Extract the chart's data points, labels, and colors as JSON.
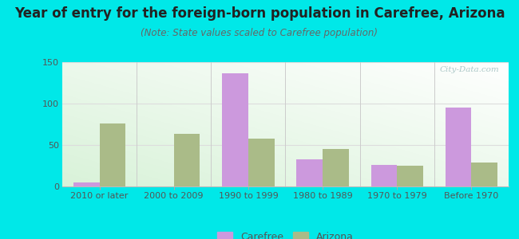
{
  "title": "Year of entry for the foreign-born population in Carefree, Arizona",
  "subtitle": "(Note: State values scaled to Carefree population)",
  "categories": [
    "2010 or later",
    "2000 to 2009",
    "1990 to 1999",
    "1980 to 1989",
    "1970 to 1979",
    "Before 1970"
  ],
  "carefree_values": [
    5,
    0,
    137,
    33,
    26,
    95
  ],
  "arizona_values": [
    76,
    63,
    58,
    45,
    25,
    29
  ],
  "carefree_color": "#cc99dd",
  "arizona_color": "#aabb88",
  "background_color": "#00e8e8",
  "ylim": [
    0,
    150
  ],
  "yticks": [
    0,
    50,
    100,
    150
  ],
  "bar_width": 0.35,
  "title_fontsize": 12,
  "subtitle_fontsize": 8.5,
  "tick_fontsize": 8,
  "legend_fontsize": 9,
  "watermark": "City-Data.com"
}
